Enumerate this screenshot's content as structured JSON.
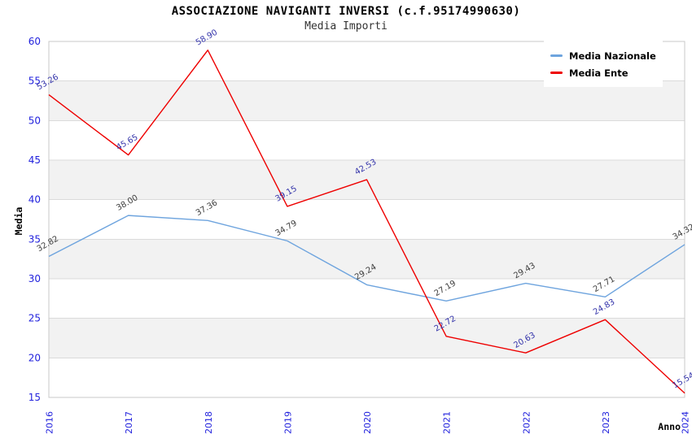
{
  "header": {
    "title": "ASSOCIAZIONE NAVIGANTI INVERSI (c.f.95174990630)",
    "subtitle": "Media Importi"
  },
  "legend": {
    "items": [
      {
        "label": "Media Nazionale"
      },
      {
        "label": "Media Ente"
      }
    ]
  },
  "chart_data": {
    "type": "line",
    "title": "ASSOCIAZIONE NAVIGANTI INVERSI (c.f.95174990630)",
    "subtitle": "Media Importi",
    "x": [
      2016,
      2017,
      2018,
      2019,
      2020,
      2021,
      2022,
      2023,
      2024
    ],
    "series": [
      {
        "name": "Media Nazionale",
        "color": "#6EA4DE",
        "label_color": "#3D3D3D",
        "values": [
          32.82,
          38.0,
          37.36,
          34.79,
          29.24,
          27.19,
          29.43,
          27.71,
          34.32
        ]
      },
      {
        "name": "Media Ente",
        "color": "#EE0000",
        "label_color": "#3333AA",
        "values": [
          53.26,
          45.65,
          58.9,
          39.15,
          42.53,
          22.72,
          20.63,
          24.83,
          15.54
        ]
      }
    ],
    "xlabel": "Anno",
    "ylabel": "Media",
    "ylim": [
      15,
      60
    ],
    "ytick_step": 5,
    "grid": true,
    "legend_position": "top-right",
    "colors": {
      "tick_label": "#2222DD",
      "band": "#F2F2F2",
      "grid_line": "#DBDBDB",
      "plot_border": "#C9C9C9",
      "axis_title": "#000000"
    }
  }
}
